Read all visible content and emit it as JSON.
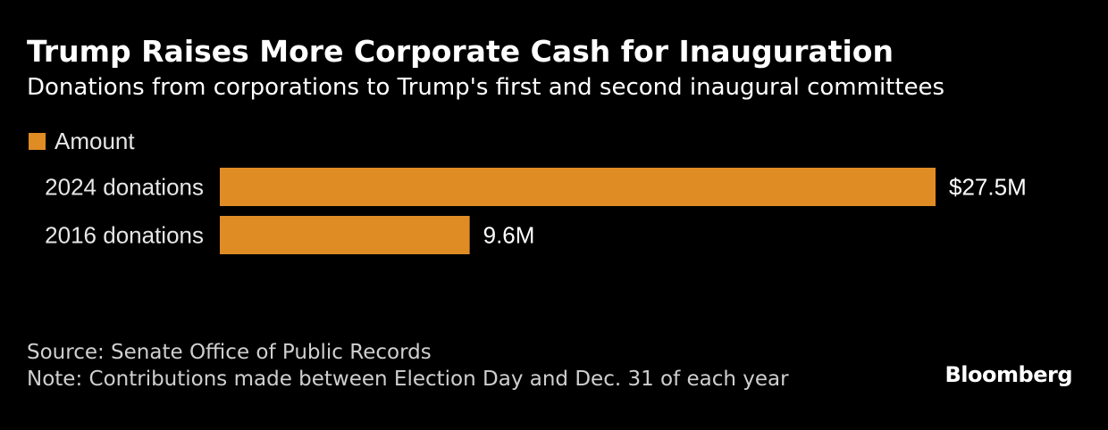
{
  "header": {
    "title": "Trump Raises More Corporate Cash for Inauguration",
    "subtitle": "Donations from corporations to Trump's first and second inaugural committees"
  },
  "footer": {
    "source": "Source: Senate Office of Public Records",
    "note": "Note: Contributions made between Election Day and Dec. 31 of each year",
    "brand": "Bloomberg"
  },
  "colors": {
    "bar": "#E08C25",
    "background": "#000000",
    "text": "#ffffff"
  },
  "chart_data": {
    "type": "bar",
    "orientation": "horizontal",
    "title": "Trump Raises More Corporate Cash for Inauguration",
    "subtitle": "Donations from corporations to Trump's first and second inaugural committees",
    "categories": [
      "2024 donations",
      "2016 donations"
    ],
    "series": [
      {
        "name": "Amount",
        "values": [
          27.5,
          9.6
        ],
        "labels": [
          "$27.5M",
          "9.6M"
        ]
      }
    ],
    "xlim": [
      0,
      27.5
    ],
    "grid": false,
    "legend": "top-left"
  }
}
